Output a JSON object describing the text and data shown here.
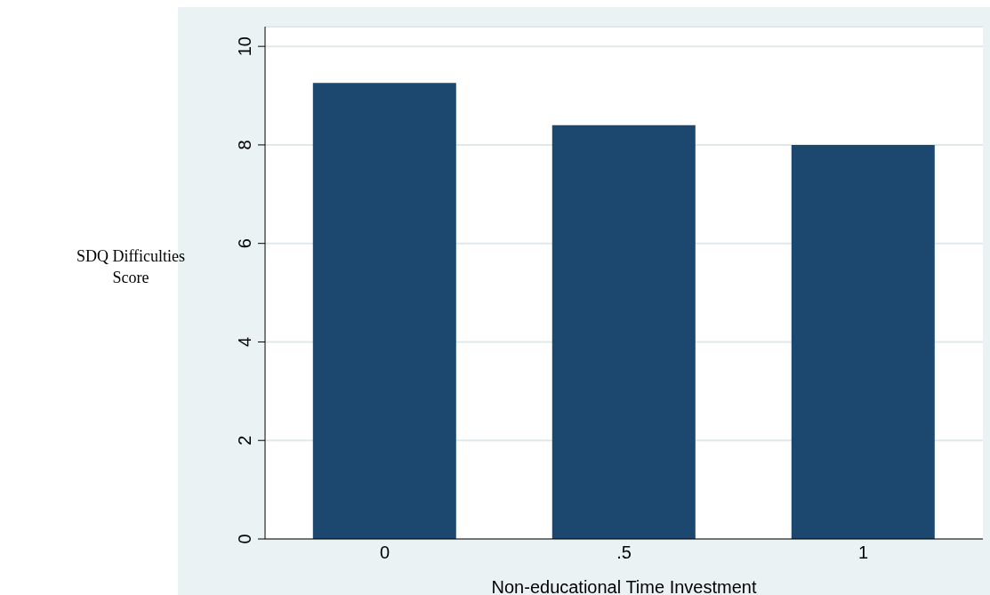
{
  "chart_data": {
    "type": "bar",
    "xlabel": "Non-educational Time Investment",
    "ylabel": "SDQ Difficulties Score",
    "categories": [
      "0",
      ".5",
      "1"
    ],
    "values": [
      9.26,
      8.4,
      8.0
    ],
    "color": "#1c476e",
    "ylim": [
      0,
      10.4
    ],
    "yticks": [
      0,
      2,
      4,
      6,
      8,
      10
    ],
    "grid": "y"
  }
}
